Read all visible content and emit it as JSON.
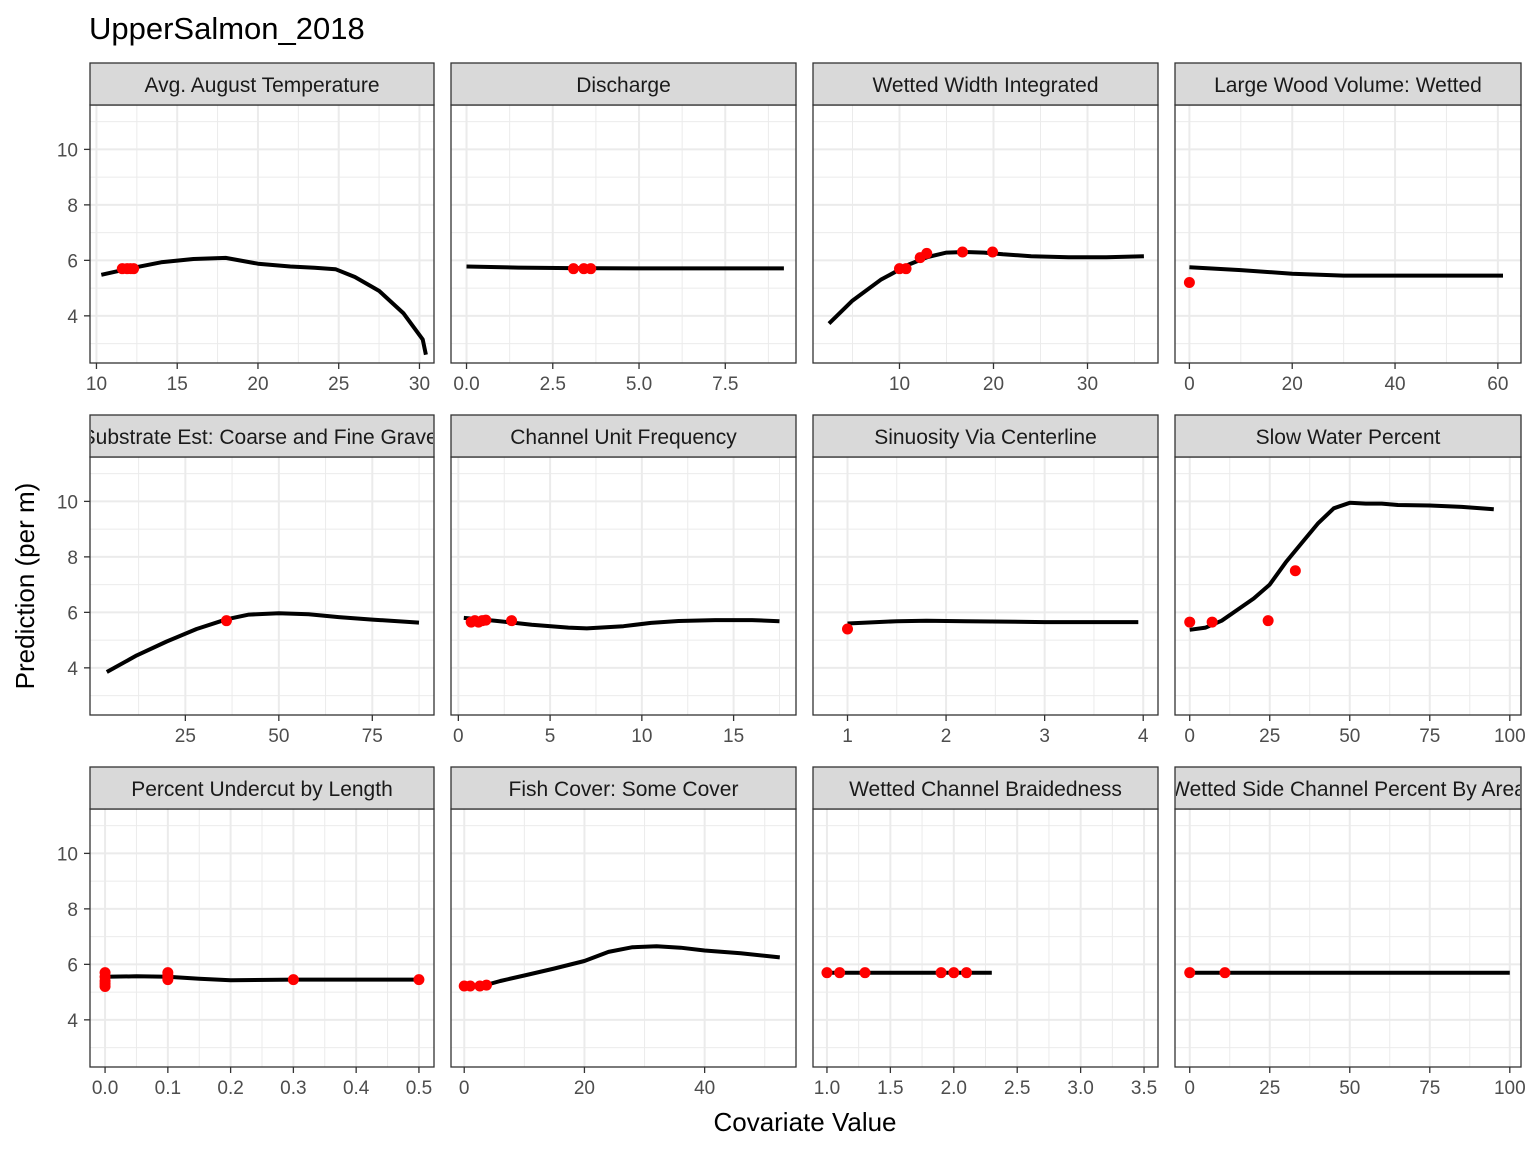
{
  "title": "UpperSalmon_2018",
  "xlabel": "Covariate Value",
  "ylabel": "Prediction (per m)",
  "colors": {
    "curve": "#000000",
    "points": "#ff0000",
    "strip_fill": "#d9d9d9",
    "panel_border": "#333333",
    "grid": "#ebebeb"
  },
  "chart_data": {
    "type": "line",
    "grid": true,
    "shared_y": {
      "ylim": [
        2.3,
        11.6
      ],
      "yticks": [
        4,
        6,
        8,
        10
      ]
    },
    "panels": [
      {
        "strip": "Avg. August Temperature",
        "xlim": [
          9.6,
          30.9
        ],
        "xticks": [
          10,
          15,
          20,
          25,
          30
        ],
        "curve": [
          [
            10.3,
            5.48
          ],
          [
            12,
            5.7
          ],
          [
            14,
            5.93
          ],
          [
            16,
            6.05
          ],
          [
            18,
            6.09
          ],
          [
            20,
            5.88
          ],
          [
            22,
            5.78
          ],
          [
            23.5,
            5.73
          ],
          [
            24.8,
            5.68
          ],
          [
            26,
            5.4
          ],
          [
            27.5,
            4.9
          ],
          [
            29,
            4.1
          ],
          [
            30.2,
            3.15
          ],
          [
            30.4,
            2.6
          ]
        ],
        "points": [
          [
            11.6,
            5.7
          ],
          [
            11.9,
            5.7
          ],
          [
            12.1,
            5.7
          ],
          [
            12.3,
            5.7
          ]
        ]
      },
      {
        "strip": "Discharge",
        "xlim": [
          -0.45,
          9.55
        ],
        "xticks": [
          0.0,
          2.5,
          5.0,
          7.5
        ],
        "xticklabels": [
          "0.0",
          "2.5",
          "5.0",
          "7.5"
        ],
        "curve": [
          [
            0,
            5.78
          ],
          [
            1.5,
            5.74
          ],
          [
            3,
            5.72
          ],
          [
            5,
            5.71
          ],
          [
            7,
            5.71
          ],
          [
            9.2,
            5.71
          ]
        ],
        "points": [
          [
            3.1,
            5.7
          ],
          [
            3.4,
            5.7
          ],
          [
            3.6,
            5.7
          ]
        ]
      },
      {
        "strip": "Wetted Width Integrated",
        "xlim": [
          0.8,
          37.5
        ],
        "xticks": [
          10,
          20,
          30
        ],
        "curve": [
          [
            2.5,
            3.72
          ],
          [
            5,
            4.55
          ],
          [
            8,
            5.3
          ],
          [
            11,
            5.85
          ],
          [
            13,
            6.12
          ],
          [
            15,
            6.28
          ],
          [
            17,
            6.3
          ],
          [
            19,
            6.28
          ],
          [
            21,
            6.22
          ],
          [
            24,
            6.15
          ],
          [
            28,
            6.11
          ],
          [
            32,
            6.11
          ],
          [
            36,
            6.15
          ]
        ],
        "points": [
          [
            10.0,
            5.7
          ],
          [
            10.7,
            5.7
          ],
          [
            12.2,
            6.1
          ],
          [
            12.9,
            6.25
          ],
          [
            16.7,
            6.3
          ],
          [
            19.9,
            6.3
          ]
        ]
      },
      {
        "strip": "Large Wood Volume: Wetted",
        "xlim": [
          -2.8,
          64.5
        ],
        "xticks": [
          0,
          20,
          40,
          60
        ],
        "curve": [
          [
            0,
            5.75
          ],
          [
            10,
            5.65
          ],
          [
            20,
            5.52
          ],
          [
            30,
            5.45
          ],
          [
            40,
            5.45
          ],
          [
            50,
            5.45
          ],
          [
            61,
            5.45
          ]
        ],
        "points": [
          [
            0,
            5.2
          ]
        ]
      },
      {
        "strip": "Substrate Est: Coarse and Fine Gravel",
        "xlim": [
          -0.5,
          91.5
        ],
        "xticks": [
          25,
          50,
          75
        ],
        "curve": [
          [
            4,
            3.85
          ],
          [
            12,
            4.45
          ],
          [
            20,
            4.95
          ],
          [
            28,
            5.4
          ],
          [
            36,
            5.75
          ],
          [
            42,
            5.92
          ],
          [
            50,
            5.97
          ],
          [
            58,
            5.93
          ],
          [
            66,
            5.83
          ],
          [
            75,
            5.74
          ],
          [
            87.5,
            5.63
          ]
        ],
        "points": [
          [
            36,
            5.7
          ]
        ]
      },
      {
        "strip": "Channel Unit Frequency",
        "xlim": [
          -0.4,
          18.4
        ],
        "xticks": [
          0,
          5,
          10,
          15
        ],
        "curve": [
          [
            0.3,
            5.8
          ],
          [
            2,
            5.7
          ],
          [
            4,
            5.55
          ],
          [
            6,
            5.45
          ],
          [
            7,
            5.42
          ],
          [
            9,
            5.5
          ],
          [
            10.5,
            5.62
          ],
          [
            12,
            5.69
          ],
          [
            14,
            5.72
          ],
          [
            16,
            5.72
          ],
          [
            17.5,
            5.68
          ]
        ],
        "points": [
          [
            0.7,
            5.65
          ],
          [
            0.9,
            5.7
          ],
          [
            1.1,
            5.65
          ],
          [
            1.3,
            5.7
          ],
          [
            1.5,
            5.72
          ],
          [
            2.9,
            5.7
          ]
        ]
      },
      {
        "strip": "Sinuosity Via Centerline",
        "xlim": [
          0.65,
          4.15
        ],
        "xticks": [
          1,
          2,
          3,
          4
        ],
        "curve": [
          [
            1,
            5.6
          ],
          [
            1.5,
            5.68
          ],
          [
            1.8,
            5.7
          ],
          [
            2.2,
            5.68
          ],
          [
            3,
            5.65
          ],
          [
            3.95,
            5.65
          ]
        ],
        "points": [
          [
            1,
            5.4
          ]
        ]
      },
      {
        "strip": "Slow Water Percent",
        "xlim": [
          -4.6,
          103.5
        ],
        "xticks": [
          0,
          25,
          50,
          75,
          100
        ],
        "curve": [
          [
            0,
            5.37
          ],
          [
            5,
            5.45
          ],
          [
            10,
            5.7
          ],
          [
            15,
            6.1
          ],
          [
            20,
            6.5
          ],
          [
            25,
            7.0
          ],
          [
            30,
            7.8
          ],
          [
            35,
            8.5
          ],
          [
            40,
            9.2
          ],
          [
            45,
            9.75
          ],
          [
            50,
            9.95
          ],
          [
            55,
            9.92
          ],
          [
            60,
            9.92
          ],
          [
            65,
            9.87
          ],
          [
            75,
            9.85
          ],
          [
            85,
            9.8
          ],
          [
            95,
            9.72
          ]
        ],
        "points": [
          [
            0,
            5.65
          ],
          [
            7,
            5.65
          ],
          [
            24.5,
            5.7
          ],
          [
            33,
            7.5
          ]
        ]
      },
      {
        "strip": "Percent Undercut by Length",
        "xlim": [
          -0.024,
          0.524
        ],
        "xticks": [
          0.0,
          0.1,
          0.2,
          0.3,
          0.4,
          0.5
        ],
        "xticklabels": [
          "0.0",
          "0.1",
          "0.2",
          "0.3",
          "0.4",
          "0.5"
        ],
        "curve": [
          [
            0,
            5.55
          ],
          [
            0.05,
            5.57
          ],
          [
            0.1,
            5.55
          ],
          [
            0.15,
            5.48
          ],
          [
            0.2,
            5.43
          ],
          [
            0.3,
            5.45
          ],
          [
            0.4,
            5.45
          ],
          [
            0.5,
            5.45
          ]
        ],
        "points": [
          [
            0,
            5.7
          ],
          [
            0,
            5.55
          ],
          [
            0,
            5.4
          ],
          [
            0,
            5.3
          ],
          [
            0,
            5.2
          ],
          [
            0.1,
            5.7
          ],
          [
            0.1,
            5.6
          ],
          [
            0.1,
            5.55
          ],
          [
            0.1,
            5.45
          ],
          [
            0.3,
            5.45
          ],
          [
            0.5,
            5.45
          ]
        ]
      },
      {
        "strip": "Fish Cover: Some Cover",
        "xlim": [
          -2.2,
          55.2
        ],
        "xticks": [
          0,
          20,
          40
        ],
        "curve": [
          [
            0,
            5.22
          ],
          [
            3,
            5.22
          ],
          [
            6,
            5.4
          ],
          [
            10,
            5.6
          ],
          [
            15,
            5.85
          ],
          [
            20,
            6.12
          ],
          [
            24,
            6.45
          ],
          [
            28,
            6.62
          ],
          [
            32,
            6.65
          ],
          [
            36,
            6.6
          ],
          [
            40,
            6.5
          ],
          [
            46,
            6.4
          ],
          [
            52.5,
            6.25
          ]
        ],
        "points": [
          [
            0,
            5.22
          ],
          [
            1,
            5.22
          ],
          [
            2.6,
            5.22
          ],
          [
            3.7,
            5.25
          ]
        ]
      },
      {
        "strip": "Wetted Channel Braidedness",
        "xlim": [
          0.89,
          3.61
        ],
        "xticks": [
          1.0,
          1.5,
          2.0,
          2.5,
          3.0,
          3.5
        ],
        "xticklabels": [
          "1.0",
          "1.5",
          "2.0",
          "2.5",
          "3.0",
          "3.5"
        ],
        "curve": [
          [
            1,
            5.7
          ],
          [
            1.5,
            5.7
          ],
          [
            2.0,
            5.7
          ],
          [
            2.3,
            5.7
          ]
        ],
        "points": [
          [
            1.0,
            5.7
          ],
          [
            1.1,
            5.7
          ],
          [
            1.3,
            5.7
          ],
          [
            1.9,
            5.7
          ],
          [
            2.0,
            5.7
          ],
          [
            2.1,
            5.7
          ]
        ]
      },
      {
        "strip": "Wetted Side Channel Percent By Area",
        "xlim": [
          -4.6,
          103.5
        ],
        "xticks": [
          0,
          25,
          50,
          75,
          100
        ],
        "curve": [
          [
            0,
            5.7
          ],
          [
            25,
            5.7
          ],
          [
            50,
            5.7
          ],
          [
            75,
            5.7
          ],
          [
            100,
            5.7
          ]
        ],
        "points": [
          [
            0,
            5.7
          ],
          [
            11,
            5.7
          ]
        ]
      }
    ]
  }
}
